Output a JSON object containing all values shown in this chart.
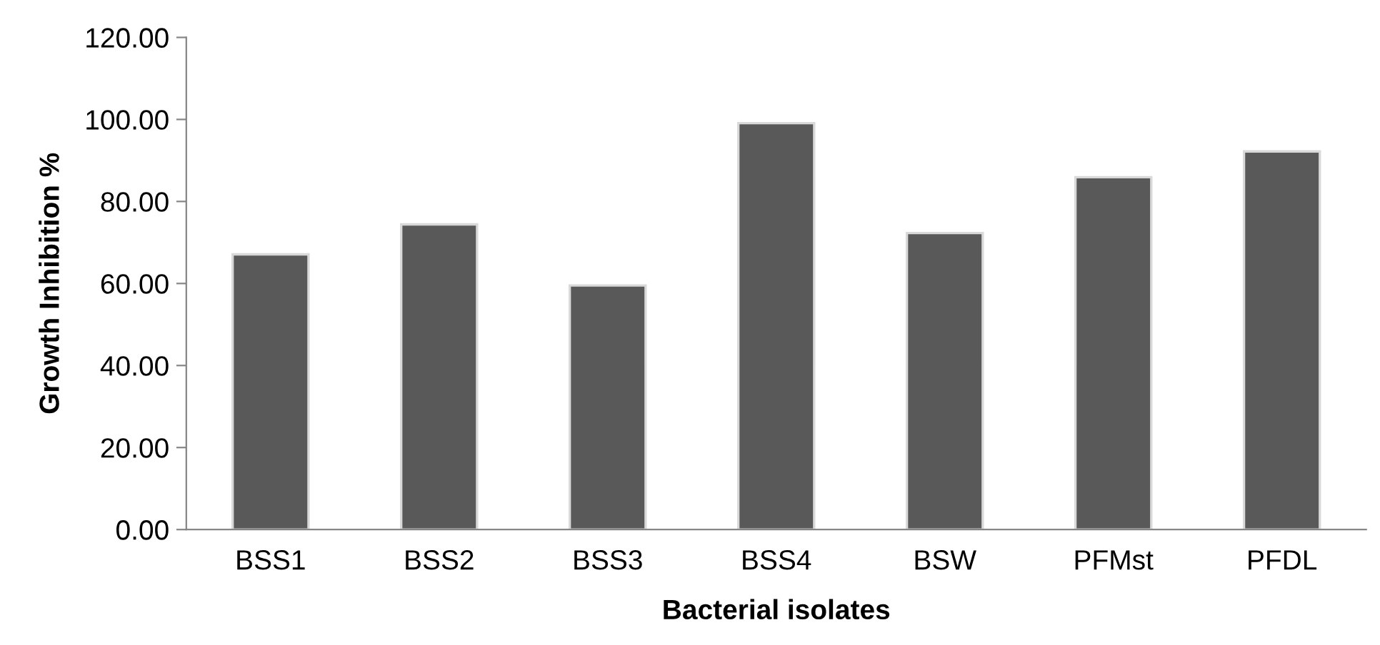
{
  "chart_data": {
    "type": "bar",
    "xlabel": "Bacterial isolates",
    "ylabel": "Growth Inhibition %",
    "categories": [
      "BSS1",
      "BSS2",
      "BSS3",
      "BSS4",
      "BSW",
      "PFMst",
      "PFDL"
    ],
    "values": [
      67.1,
      74.4,
      59.5,
      99.1,
      72.3,
      85.9,
      92.2
    ],
    "color": "#595959",
    "ylim": [
      0,
      120
    ],
    "yticks": [
      {
        "value": 0,
        "label": "0.00"
      },
      {
        "value": 20,
        "label": "20.00"
      },
      {
        "value": 40,
        "label": "40.00"
      },
      {
        "value": 60,
        "label": "60.00"
      },
      {
        "value": 80,
        "label": "80.00"
      },
      {
        "value": 100,
        "label": "100.00"
      },
      {
        "value": 120,
        "label": "120.00"
      }
    ],
    "grid": false,
    "legend": false
  }
}
